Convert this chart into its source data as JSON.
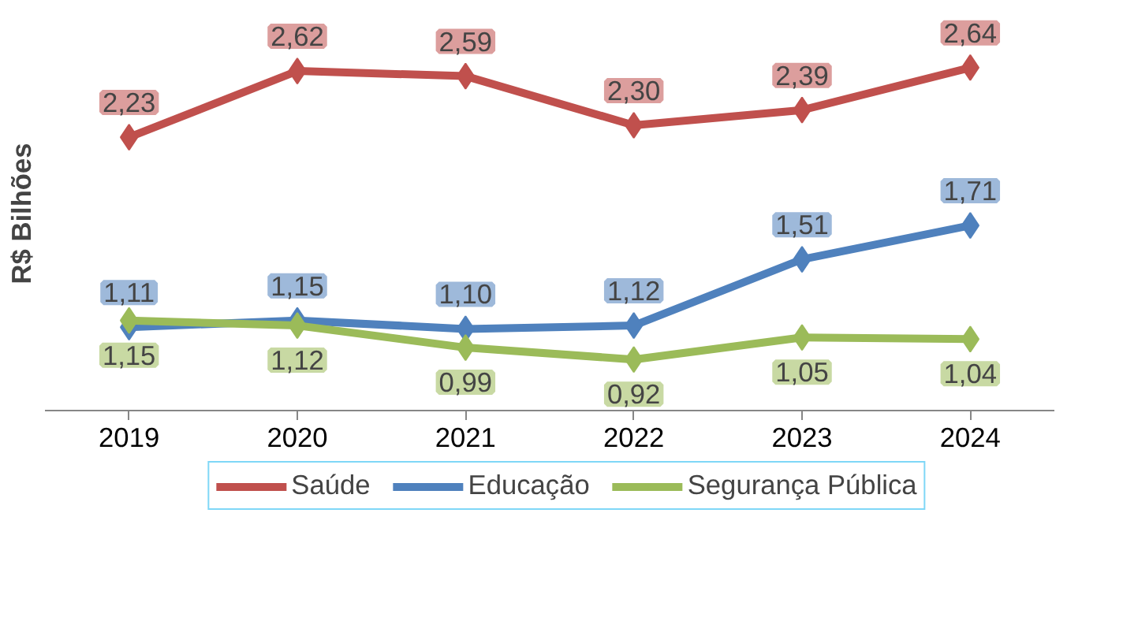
{
  "chart_data": {
    "type": "line",
    "ylabel": "R$ Bilhões",
    "categories": [
      "2019",
      "2020",
      "2021",
      "2022",
      "2023",
      "2024"
    ],
    "series": [
      {
        "name": "Saúde",
        "color": "#c0504d",
        "values": [
          2.23,
          2.62,
          2.59,
          2.3,
          2.39,
          2.64
        ],
        "value_labels": [
          "2,23",
          "2,62",
          "2,59",
          "2,30",
          "2,39",
          "2,64"
        ]
      },
      {
        "name": "Educação",
        "color": "#4f81bd",
        "values": [
          1.11,
          1.15,
          1.1,
          1.12,
          1.51,
          1.71
        ],
        "value_labels": [
          "1,11",
          "1,15",
          "1,10",
          "1,12",
          "1,51",
          "1,71"
        ]
      },
      {
        "name": "Segurança Pública",
        "color": "#9bbb59",
        "values": [
          1.15,
          1.12,
          0.99,
          0.92,
          1.05,
          1.04
        ],
        "value_labels": [
          "1,15",
          "1,12",
          "0,99",
          "0,92",
          "1,05",
          "1,04"
        ]
      }
    ],
    "tick_labels": "x",
    "marker": "diamond",
    "line_style": "solid",
    "legend": "bottom",
    "grid": false
  }
}
